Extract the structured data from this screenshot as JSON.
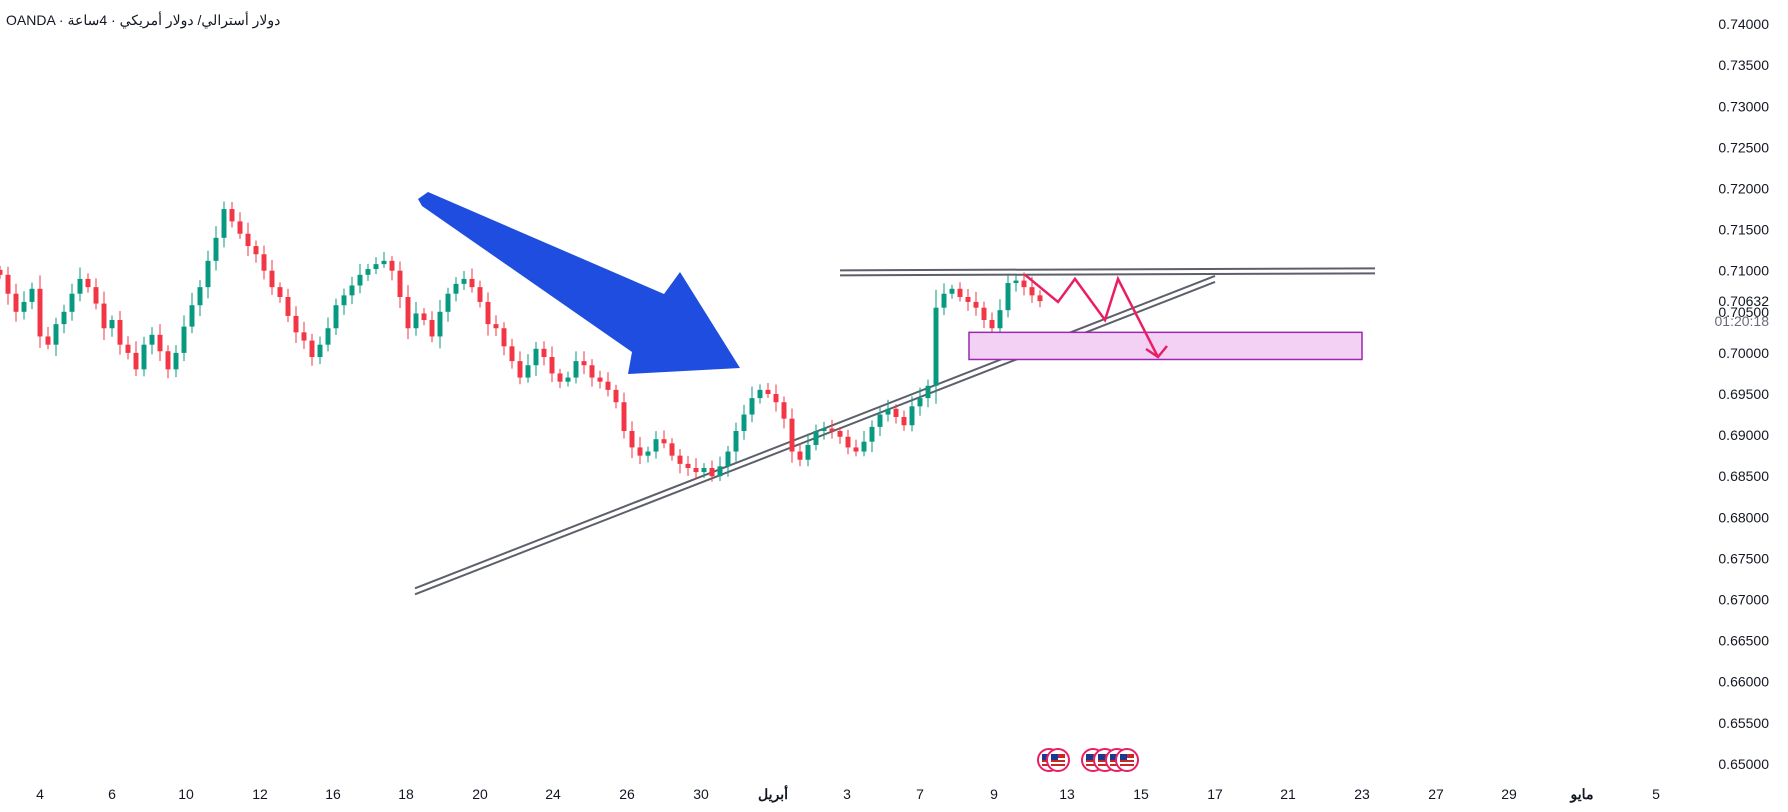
{
  "header": {
    "symbol_title": "OANDA · دولار أسترالي/ دولار أمريكي · 4ساعة"
  },
  "chart_data": {
    "type": "candlestick",
    "title": "OANDA · دولار أسترالي/ دولار أمريكي · 4ساعة",
    "ylim": [
      0.6495,
      0.7405
    ],
    "y_ticks": [
      "0.74000",
      "0.73500",
      "0.73000",
      "0.72500",
      "0.72000",
      "0.71500",
      "0.71000",
      "0.70500",
      "0.70000",
      "0.69500",
      "0.69000",
      "0.68500",
      "0.68000",
      "0.67500",
      "0.67000",
      "0.66500",
      "0.66000",
      "0.65500",
      "0.65000"
    ],
    "x_ticks": [
      {
        "label": "4",
        "bold": false
      },
      {
        "label": "6",
        "bold": false
      },
      {
        "label": "10",
        "bold": false
      },
      {
        "label": "12",
        "bold": false
      },
      {
        "label": "16",
        "bold": false
      },
      {
        "label": "18",
        "bold": false
      },
      {
        "label": "20",
        "bold": false
      },
      {
        "label": "24",
        "bold": false
      },
      {
        "label": "26",
        "bold": false
      },
      {
        "label": "30",
        "bold": false
      },
      {
        "label": "أبريل",
        "bold": true
      },
      {
        "label": "3",
        "bold": false
      },
      {
        "label": "7",
        "bold": false
      },
      {
        "label": "9",
        "bold": false
      },
      {
        "label": "13",
        "bold": false
      },
      {
        "label": "15",
        "bold": false
      },
      {
        "label": "17",
        "bold": false
      },
      {
        "label": "21",
        "bold": false
      },
      {
        "label": "23",
        "bold": false
      },
      {
        "label": "27",
        "bold": false
      },
      {
        "label": "29",
        "bold": false
      },
      {
        "label": "مايو",
        "bold": true
      },
      {
        "label": "5",
        "bold": false
      }
    ],
    "current_price": "0.70632",
    "countdown": "01:20:18",
    "colors": {
      "up": "#089981",
      "down": "#f23645",
      "arrow": "#1f4de0",
      "path": "#e91e63",
      "zone_fill": "#f3d1f4",
      "zone_stroke": "#9c27b0",
      "trendline": "#5d606b"
    },
    "close_path": [
      0.7095,
      0.7072,
      0.705,
      0.7062,
      0.7078,
      0.702,
      0.701,
      0.7035,
      0.705,
      0.7072,
      0.709,
      0.708,
      0.706,
      0.703,
      0.704,
      0.701,
      0.7,
      0.698,
      0.701,
      0.7022,
      0.7002,
      0.698,
      0.7,
      0.7032,
      0.7058,
      0.708,
      0.7112,
      0.714,
      0.7175,
      0.716,
      0.7145,
      0.713,
      0.712,
      0.71,
      0.708,
      0.7068,
      0.7045,
      0.7025,
      0.7015,
      0.6995,
      0.701,
      0.703,
      0.7058,
      0.707,
      0.7082,
      0.7095,
      0.7102,
      0.7108,
      0.7112,
      0.71,
      0.7068,
      0.703,
      0.7048,
      0.704,
      0.702,
      0.705,
      0.7072,
      0.7084,
      0.709,
      0.708,
      0.7062,
      0.7035,
      0.703,
      0.7008,
      0.699,
      0.697,
      0.6985,
      0.7005,
      0.6995,
      0.6975,
      0.6965,
      0.697,
      0.699,
      0.6985,
      0.697,
      0.6965,
      0.6955,
      0.694,
      0.6905,
      0.6885,
      0.6875,
      0.688,
      0.6895,
      0.689,
      0.6875,
      0.6865,
      0.686,
      0.6855,
      0.686,
      0.685,
      0.6862,
      0.688,
      0.6905,
      0.6925,
      0.6945,
      0.6955,
      0.695,
      0.694,
      0.692,
      0.688,
      0.687,
      0.6888,
      0.6905,
      0.6908,
      0.6905,
      0.6898,
      0.6885,
      0.688,
      0.6892,
      0.691,
      0.6925,
      0.6932,
      0.6922,
      0.6912,
      0.6935,
      0.6945,
      0.696,
      0.7055,
      0.7072,
      0.7078,
      0.7068,
      0.7062,
      0.7055,
      0.704,
      0.703,
      0.7052,
      0.7085,
      0.7088,
      0.708,
      0.707,
      0.7063
    ],
    "annotations": {
      "resistance_level": 0.7098,
      "rising_trendline": {
        "from": [
          415,
          0.671
        ],
        "to": [
          1215,
          0.709
        ]
      },
      "target_zone": {
        "top": 0.7025,
        "bottom": 0.6992
      },
      "projected_path": [
        0.7095,
        0.7062,
        0.709,
        0.704,
        0.709,
        0.6995
      ]
    }
  }
}
